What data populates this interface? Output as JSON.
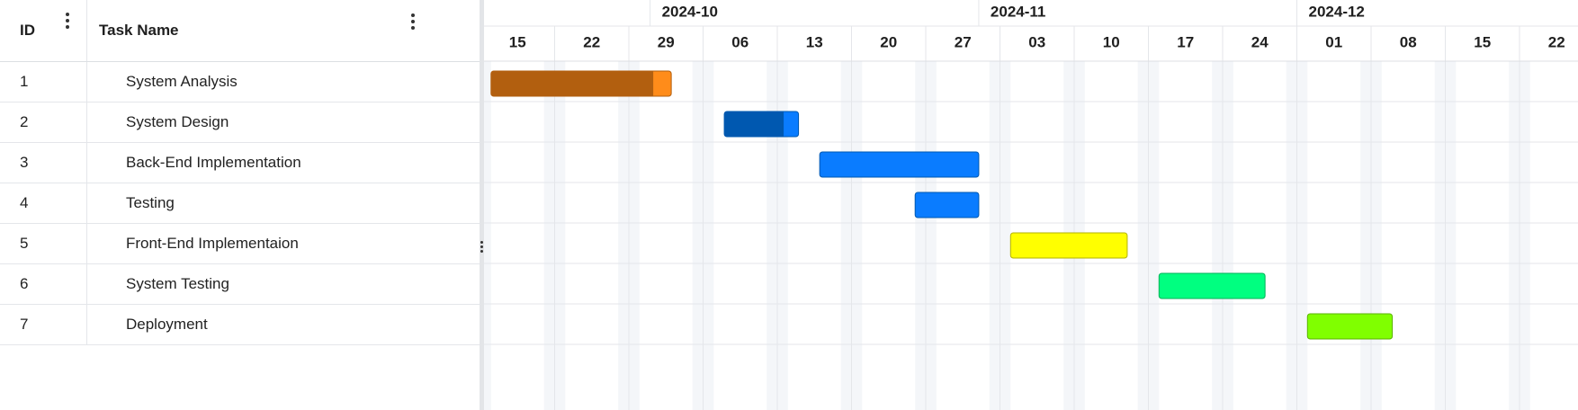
{
  "grid": {
    "columns": [
      {
        "key": "id",
        "label": "ID"
      },
      {
        "key": "name",
        "label": "Task Name"
      }
    ],
    "rows": [
      {
        "id": "1",
        "name": "System Analysis"
      },
      {
        "id": "2",
        "name": "System Design"
      },
      {
        "id": "3",
        "name": "Back-End Implementation"
      },
      {
        "id": "4",
        "name": "Testing"
      },
      {
        "id": "5",
        "name": "Front-End Implementaion"
      },
      {
        "id": "6",
        "name": "System Testing"
      },
      {
        "id": "7",
        "name": "Deployment"
      }
    ]
  },
  "timeline": {
    "months": [
      "2024-10",
      "2024-11",
      "2024-12"
    ],
    "week_ticks": [
      "15",
      "22",
      "29",
      "06",
      "13",
      "20",
      "27",
      "03",
      "10",
      "17",
      "24",
      "01",
      "08",
      "15",
      "22"
    ],
    "week_dates": [
      "2024-09-15",
      "2024-09-22",
      "2024-09-29",
      "2024-10-06",
      "2024-10-13",
      "2024-10-20",
      "2024-10-27",
      "2024-11-03",
      "2024-11-10",
      "2024-11-17",
      "2024-11-24",
      "2024-12-01",
      "2024-12-08",
      "2024-12-15",
      "2024-12-22"
    ],
    "month_starts": [
      "2024-10-01",
      "2024-11-01",
      "2024-12-01"
    ]
  },
  "tasks": [
    {
      "id": "1",
      "start": "2024-09-16",
      "end": "2024-10-03",
      "progress": 0.9,
      "color": "#ff8c1a",
      "progress_color": "#b25f0f"
    },
    {
      "id": "2",
      "start": "2024-10-08",
      "end": "2024-10-15",
      "progress": 0.8,
      "color": "#0a7cff",
      "progress_color": "#0058b0"
    },
    {
      "id": "3",
      "start": "2024-10-17",
      "end": "2024-11-01",
      "progress": 0,
      "color": "#0a7cff",
      "progress_color": "#0058b0"
    },
    {
      "id": "4",
      "start": "2024-10-26",
      "end": "2024-11-01",
      "progress": 0,
      "color": "#0a7cff",
      "progress_color": "#0058b0"
    },
    {
      "id": "5",
      "start": "2024-11-04",
      "end": "2024-11-15",
      "progress": 0,
      "color": "#ffff00",
      "progress_color": "#b2b200"
    },
    {
      "id": "6",
      "start": "2024-11-18",
      "end": "2024-11-28",
      "progress": 0,
      "color": "#00ff80",
      "progress_color": "#00b25a"
    },
    {
      "id": "7",
      "start": "2024-12-02",
      "end": "2024-12-10",
      "progress": 0,
      "color": "#80ff00",
      "progress_color": "#5ab200"
    }
  ],
  "icons": {
    "column_menu": "kebab-vertical-icon",
    "splitter_handle": "drag-handle-icon"
  }
}
